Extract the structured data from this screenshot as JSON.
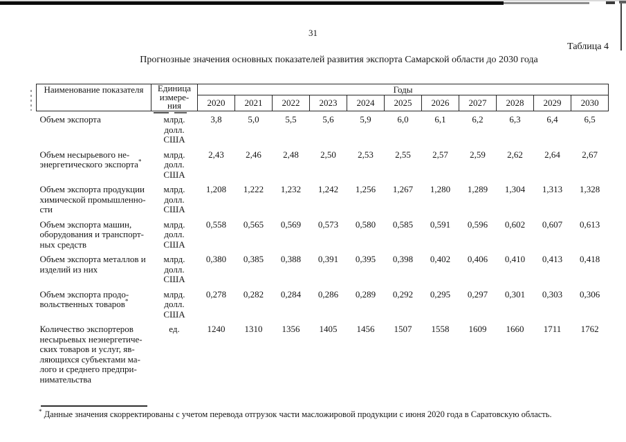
{
  "page": {
    "number": "31",
    "table_label": "Таблица 4",
    "title": "Прогнозные значения основных показателей развития экспорта Самарской области до 2030 года"
  },
  "table": {
    "indicator_header": "Наименование показателя",
    "unit_header_lines": [
      "Единица",
      "измере-",
      "ния"
    ],
    "years_group_label": "Годы",
    "years": [
      "2020",
      "2021",
      "2022",
      "2023",
      "2024",
      "2025",
      "2026",
      "2027",
      "2028",
      "2029",
      "2030"
    ],
    "rows": [
      {
        "name_lines": [
          "Объем экспорта"
        ],
        "footnote_mark": "",
        "unit_lines": [
          "млрд.",
          "долл.",
          "США"
        ],
        "values": [
          "3,8",
          "5,0",
          "5,5",
          "5,6",
          "5,9",
          "6,0",
          "6,1",
          "6,2",
          "6,3",
          "6,4",
          "6,5"
        ]
      },
      {
        "name_lines": [
          "Объем несырьевого не-",
          "энергетического экспорта"
        ],
        "footnote_mark": "*",
        "unit_lines": [
          "млрд.",
          "долл.",
          "США"
        ],
        "values": [
          "2,43",
          "2,46",
          "2,48",
          "2,50",
          "2,53",
          "2,55",
          "2,57",
          "2,59",
          "2,62",
          "2,64",
          "2,67"
        ]
      },
      {
        "name_lines": [
          "Объем экспорта продукции",
          "химической промышленно-",
          "сти"
        ],
        "footnote_mark": "",
        "unit_lines": [
          "млрд.",
          "долл.",
          "США"
        ],
        "values": [
          "1,208",
          "1,222",
          "1,232",
          "1,242",
          "1,256",
          "1,267",
          "1,280",
          "1,289",
          "1,304",
          "1,313",
          "1,328"
        ]
      },
      {
        "name_lines": [
          "Объем экспорта машин,",
          "оборудования и транспорт-",
          "ных средств"
        ],
        "footnote_mark": "",
        "unit_lines": [
          "млрд.",
          "долл.",
          "США"
        ],
        "values": [
          "0,558",
          "0,565",
          "0,569",
          "0,573",
          "0,580",
          "0,585",
          "0,591",
          "0,596",
          "0,602",
          "0,607",
          "0,613"
        ]
      },
      {
        "name_lines": [
          "Объем экспорта металлов и",
          "изделий из них"
        ],
        "footnote_mark": "",
        "unit_lines": [
          "млрд.",
          "долл.",
          "США"
        ],
        "values": [
          "0,380",
          "0,385",
          "0,388",
          "0,391",
          "0,395",
          "0,398",
          "0,402",
          "0,406",
          "0,410",
          "0,413",
          "0,418"
        ]
      },
      {
        "name_lines": [
          "Объем экспорта продо-",
          "вольственных товаров"
        ],
        "footnote_mark": "*",
        "unit_lines": [
          "млрд.",
          "долл.",
          "США"
        ],
        "values": [
          "0,278",
          "0,282",
          "0,284",
          "0,286",
          "0,289",
          "0,292",
          "0,295",
          "0,297",
          "0,301",
          "0,303",
          "0,306"
        ]
      },
      {
        "name_lines": [
          "Количество экспортеров",
          "несырьевых неэнергетиче-",
          "ских товаров и услуг, яв-",
          "ляющихся субъектами ма-",
          "лого и среднего предпри-",
          "нимательства"
        ],
        "footnote_mark": "",
        "unit_lines": [
          "ед."
        ],
        "values": [
          "1240",
          "1310",
          "1356",
          "1405",
          "1456",
          "1507",
          "1558",
          "1609",
          "1660",
          "1711",
          "1762"
        ]
      }
    ]
  },
  "footnote": {
    "marker": "*",
    "text": "Данные значения скорректированы с учетом перевода отгрузок части масложировой продукции с июня 2020 года в Саратовскую область."
  }
}
